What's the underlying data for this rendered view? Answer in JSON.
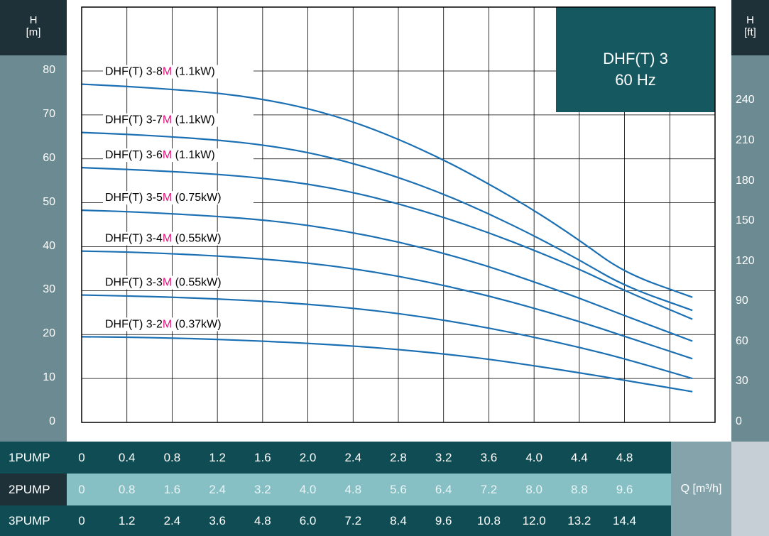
{
  "left_axis": {
    "unit_label": "H",
    "unit_sub": "[m]",
    "ticks": [
      "0",
      "10",
      "20",
      "30",
      "40",
      "50",
      "60",
      "70",
      "80"
    ]
  },
  "right_axis": {
    "unit_label": "H",
    "unit_sub": "[ft]",
    "ticks": [
      "0",
      "30",
      "60",
      "90",
      "120",
      "150",
      "180",
      "210",
      "240"
    ]
  },
  "title_box": {
    "line1": "DHF(T) 3",
    "line2": "60 Hz"
  },
  "flow_table": {
    "unit_label": "Q [m³/h]",
    "rows": [
      {
        "label": "1PUMP",
        "values": [
          "0",
          "0.4",
          "0.8",
          "1.2",
          "1.6",
          "2.0",
          "2.4",
          "2.8",
          "3.2",
          "3.6",
          "4.0",
          "4.4",
          "4.8"
        ]
      },
      {
        "label": "2PUMP",
        "values": [
          "0",
          "0.8",
          "1.6",
          "2.4",
          "3.2",
          "4.0",
          "4.8",
          "5.6",
          "6.4",
          "7.2",
          "8.0",
          "8.8",
          "9.6"
        ]
      },
      {
        "label": "3PUMP",
        "values": [
          "0",
          "1.2",
          "2.4",
          "3.6",
          "4.8",
          "6.0",
          "7.2",
          "8.4",
          "9.6",
          "10.8",
          "12.0",
          "13.2",
          "14.4"
        ]
      }
    ]
  },
  "colors": {
    "dark_band": "#0f4c53",
    "axis_band": "#6b8a92",
    "light_row": "#86c0c4",
    "curve": "#1b6fb3",
    "highlight": "#e0197d",
    "title_box": "#165860"
  },
  "chart_data": {
    "type": "line",
    "title": "DHF(T) 3 60 Hz",
    "xlabel": "Q [m³/h]",
    "ylabel": "H [m]",
    "xlim": [
      0,
      6.0
    ],
    "ylim": [
      0,
      80
    ],
    "grid": true,
    "series": [
      {
        "name_prefix": "DHF(T) 3-8",
        "name_mark": "M",
        "name_suffix": " (1.1kW)",
        "x": [
          0,
          0.4,
          0.8,
          1.2,
          1.6,
          2.0,
          2.4,
          2.8,
          3.2,
          3.6,
          4.0,
          4.4,
          4.8,
          5.4
        ],
        "y": [
          77,
          76.5,
          75.8,
          75,
          73.6,
          71.5,
          68.5,
          64.5,
          59.8,
          54.3,
          48.3,
          41.5,
          34,
          28.5
        ]
      },
      {
        "name_prefix": "DHF(T) 3-7",
        "name_mark": "M",
        "name_suffix": " (1.1kW)",
        "x": [
          0,
          0.4,
          0.8,
          1.2,
          1.6,
          2.0,
          2.4,
          2.8,
          3.2,
          3.6,
          4.0,
          4.4,
          4.8,
          5.4
        ],
        "y": [
          66,
          65.6,
          65,
          64.3,
          63.2,
          61.5,
          59,
          55.8,
          52,
          47.5,
          42.5,
          37,
          31,
          25.5
        ]
      },
      {
        "name_prefix": "DHF(T) 3-6",
        "name_mark": "M",
        "name_suffix": " (1.1kW)",
        "x": [
          0,
          0.4,
          0.8,
          1.2,
          1.6,
          2.0,
          2.4,
          2.8,
          3.2,
          3.6,
          4.0,
          4.4,
          4.8,
          5.4
        ],
        "y": [
          58,
          57.6,
          57.1,
          56.5,
          55.6,
          54.3,
          52.4,
          49.8,
          46.7,
          43.2,
          39.2,
          34.9,
          30,
          23.5
        ]
      },
      {
        "name_prefix": "DHF(T) 3-5",
        "name_mark": "M",
        "name_suffix": " (0.75kW)",
        "x": [
          0,
          0.4,
          0.8,
          1.2,
          1.6,
          2.0,
          2.4,
          2.8,
          3.2,
          3.6,
          4.0,
          4.4,
          4.8,
          5.4
        ],
        "y": [
          48.3,
          48,
          47.5,
          46.9,
          46.1,
          44.9,
          43.2,
          41.1,
          38.5,
          35.5,
          32,
          28.3,
          24.3,
          18.5
        ]
      },
      {
        "name_prefix": "DHF(T) 3-4",
        "name_mark": "M",
        "name_suffix": " (0.55kW)",
        "x": [
          0,
          0.4,
          0.8,
          1.2,
          1.6,
          2.0,
          2.4,
          2.8,
          3.2,
          3.6,
          4.0,
          4.4,
          4.8,
          5.4
        ],
        "y": [
          39,
          38.8,
          38.4,
          37.9,
          37.2,
          36.3,
          35,
          33.3,
          31.2,
          28.8,
          26,
          23,
          19.6,
          14.5
        ]
      },
      {
        "name_prefix": "DHF(T) 3-3",
        "name_mark": "M",
        "name_suffix": " (0.55kW)",
        "x": [
          0,
          0.4,
          0.8,
          1.2,
          1.6,
          2.0,
          2.4,
          2.8,
          3.2,
          3.6,
          4.0,
          4.4,
          4.8,
          5.4
        ],
        "y": [
          29,
          28.8,
          28.5,
          28.1,
          27.6,
          26.9,
          26,
          24.8,
          23.3,
          21.5,
          19.4,
          17.1,
          14.5,
          10
        ]
      },
      {
        "name_prefix": "DHF(T) 3-2",
        "name_mark": "M",
        "name_suffix": " (0.37kW)",
        "x": [
          0,
          0.4,
          0.8,
          1.2,
          1.6,
          2.0,
          2.4,
          2.8,
          3.2,
          3.6,
          4.0,
          4.4,
          4.8,
          5.4
        ],
        "y": [
          19.5,
          19.4,
          19.2,
          18.9,
          18.5,
          18,
          17.4,
          16.6,
          15.6,
          14.4,
          12.9,
          11.3,
          9.6,
          7
        ]
      }
    ]
  }
}
